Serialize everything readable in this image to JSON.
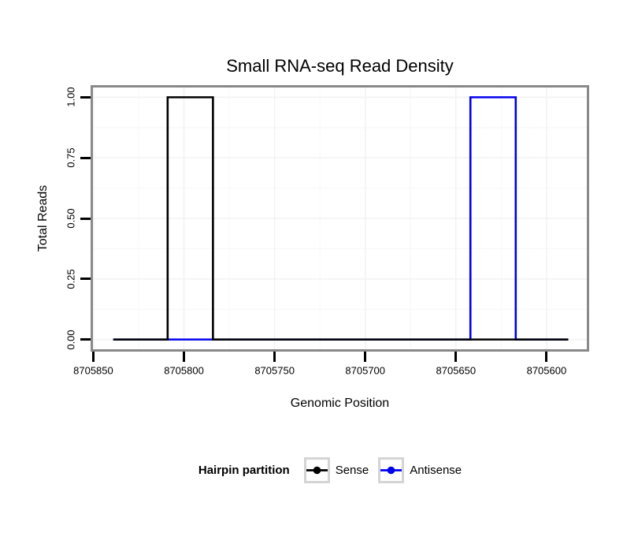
{
  "chart_data": {
    "type": "line",
    "subtype": "step",
    "title": "Small RNA-seq Read Density",
    "xlabel": "Genomic Position",
    "ylabel": "Total Reads",
    "x_reversed": true,
    "x_axis": {
      "domain_left": 8705851.5,
      "domain_right": 8705576.5,
      "ticks": [
        {
          "v": 8705850,
          "label": "8705850"
        },
        {
          "v": 8705800,
          "label": "8705800"
        },
        {
          "v": 8705750,
          "label": "8705750"
        },
        {
          "v": 8705700,
          "label": "8705700"
        },
        {
          "v": 8705650,
          "label": "8705650"
        },
        {
          "v": 8705600,
          "label": "8705600"
        }
      ]
    },
    "y_axis": {
      "domain_min": -0.05,
      "domain_max": 1.05,
      "ylim": [
        0,
        1
      ],
      "ticks": [
        {
          "v": 0.0,
          "label": "0.00"
        },
        {
          "v": 0.25,
          "label": "0.25"
        },
        {
          "v": 0.5,
          "label": "0.50"
        },
        {
          "v": 0.75,
          "label": "0.75"
        },
        {
          "v": 1.0,
          "label": "1.00"
        }
      ]
    },
    "series": [
      {
        "name": "Antisense",
        "color": "#0000EE",
        "x": [
          8705839,
          8705642,
          8705642,
          8705617,
          8705617,
          8705588
        ],
        "y": [
          0,
          0,
          1,
          1,
          0,
          0
        ]
      },
      {
        "name": "Sense",
        "color": "#000000",
        "x": [
          8705839,
          8705809,
          8705809,
          8705784,
          8705784,
          8705588
        ],
        "y": [
          0,
          0,
          1,
          1,
          0,
          0
        ]
      }
    ],
    "legend": {
      "title": "Hairpin partition",
      "position": "bottom",
      "entries": [
        {
          "label": "Sense",
          "color": "#000000"
        },
        {
          "label": "Antisense",
          "color": "#0000EE"
        }
      ]
    },
    "grid": {
      "major_color": "#F2F2F2",
      "minor_color": "#F8F8F8",
      "background": "#FFFFFF"
    }
  },
  "colors": {
    "panel_border": "#898989",
    "tick": "#000000",
    "legend_key_border": "#D4D4D4",
    "text": "#000000"
  }
}
